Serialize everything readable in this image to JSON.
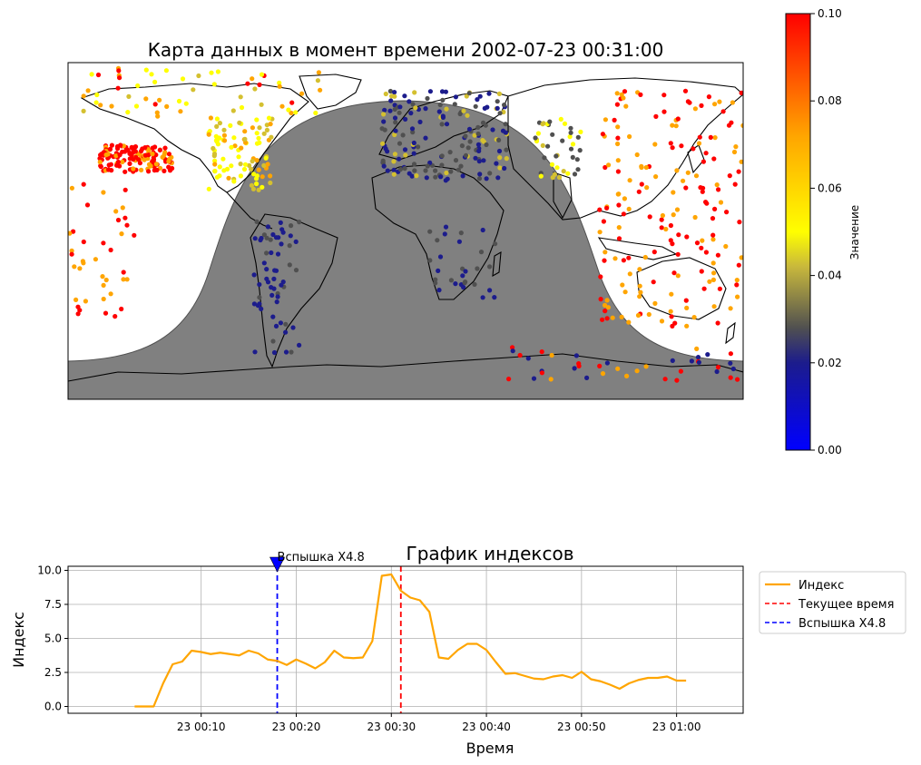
{
  "map": {
    "title": "Карта данных в момент времени 2002-07-23 00:31:00",
    "colorbar": {
      "label": "Значение",
      "min": 0.0,
      "max": 0.1,
      "ticks": [
        "0.00",
        "0.02",
        "0.04",
        "0.06",
        "0.08",
        "0.10"
      ],
      "colors": [
        "#0000ff",
        "#1c1c8c",
        "#505050",
        "#d4c030",
        "#ffff00",
        "#ffa500",
        "#ff0000"
      ]
    },
    "night_color": "#808080"
  },
  "chart_data": {
    "type": "line",
    "title": "График индексов",
    "xlabel": "Время",
    "ylabel": "Индекс",
    "x_unit": "minutes past 2002-07-23 00:00",
    "x": [
      3,
      4,
      5,
      6,
      7,
      8,
      9,
      10,
      11,
      12,
      13,
      14,
      15,
      16,
      17,
      18,
      19,
      20,
      21,
      22,
      23,
      24,
      25,
      26,
      27,
      28,
      29,
      30,
      31,
      32,
      33,
      34,
      35,
      36,
      37,
      38,
      39,
      40,
      41,
      42,
      43,
      44,
      45,
      46,
      47,
      48,
      49,
      50,
      51,
      52,
      53,
      54,
      55,
      56,
      57,
      58,
      59,
      60,
      61
    ],
    "xtick_values": [
      10,
      20,
      30,
      40,
      50,
      60
    ],
    "xtick_labels": [
      "23 00:10",
      "23 00:20",
      "23 00:30",
      "23 00:40",
      "23 00:50",
      "23 01:00"
    ],
    "xlim": [
      -4,
      67
    ],
    "ylim": [
      -0.5,
      10.3
    ],
    "yticks": [
      "0.0",
      "2.5",
      "5.0",
      "7.5",
      "10.0"
    ],
    "ytick_values": [
      0,
      2.5,
      5,
      7.5,
      10
    ],
    "grid": true,
    "legend_position": "top-right",
    "series": [
      {
        "name": "Индекс",
        "color": "#ffa500",
        "values": [
          0.0,
          0.0,
          0.0,
          1.7,
          3.1,
          3.3,
          4.1,
          4.0,
          3.85,
          3.95,
          3.85,
          3.75,
          4.1,
          3.9,
          3.45,
          3.35,
          3.05,
          3.45,
          3.15,
          2.8,
          3.25,
          4.1,
          3.6,
          3.55,
          3.6,
          4.8,
          9.6,
          9.7,
          8.5,
          8.0,
          7.8,
          6.95,
          3.6,
          3.5,
          4.15,
          4.6,
          4.6,
          4.15,
          3.25,
          2.4,
          2.45,
          2.25,
          2.05,
          2.0,
          2.2,
          2.3,
          2.1,
          2.55,
          2.0,
          1.85,
          1.6,
          1.3,
          1.7,
          1.95,
          2.1,
          2.1,
          2.2,
          1.9,
          1.9
        ]
      }
    ],
    "vlines": [
      {
        "name": "Текущее время",
        "x": 31,
        "color": "#ff0000",
        "style": "dashed"
      },
      {
        "name": "Вспышка X4.8",
        "x": 18,
        "color": "#0000ff",
        "style": "dashed"
      }
    ],
    "annotation": {
      "text": "Вспышка X4.8",
      "x": 18,
      "marker": "triangle-down",
      "color": "#0000ff"
    }
  }
}
